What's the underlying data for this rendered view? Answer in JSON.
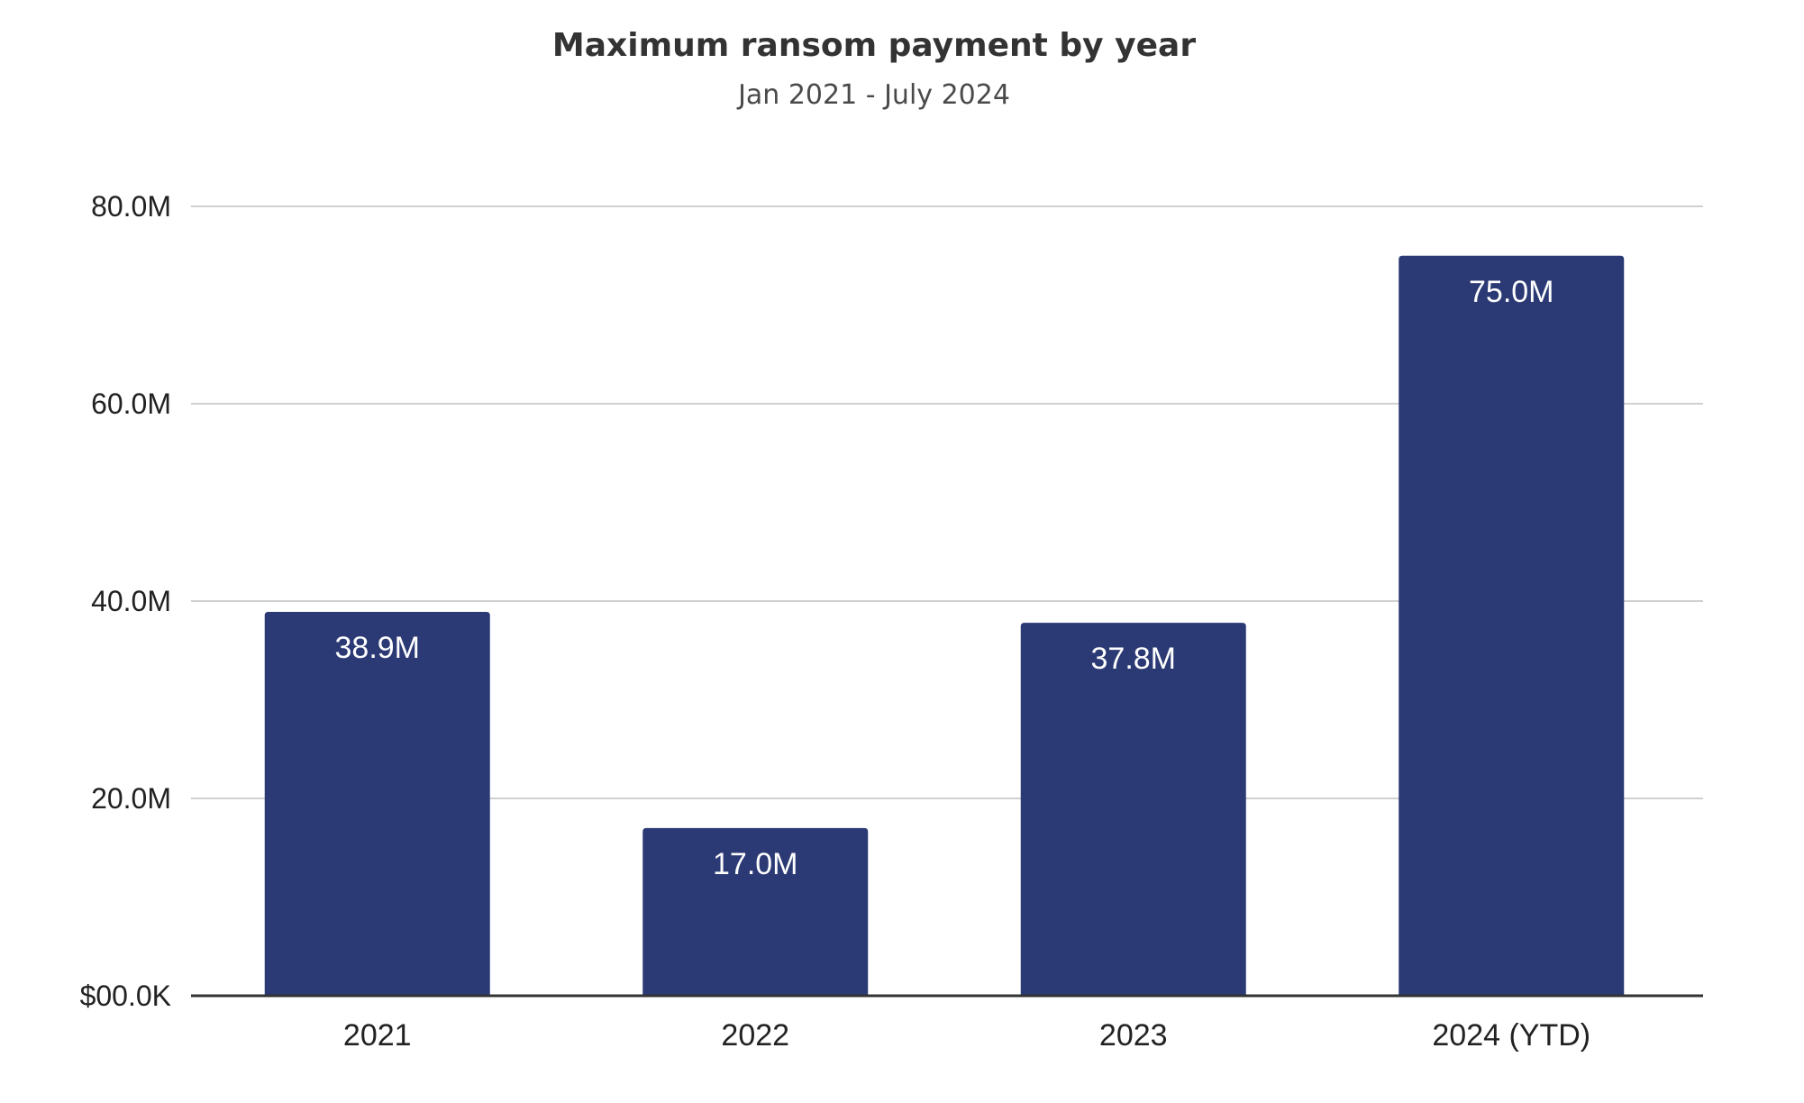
{
  "chart_data": {
    "type": "bar",
    "title": "Maximum ransom payment by year",
    "subtitle": "Jan 2021 - July 2024",
    "categories": [
      "2021",
      "2022",
      "2023",
      "2024 (YTD)"
    ],
    "values": [
      38.9,
      17.0,
      37.8,
      75.0
    ],
    "value_labels": [
      "38.9M",
      "17.0M",
      "37.8M",
      "75.0M"
    ],
    "xlabel": "",
    "ylabel": "",
    "ylim": [
      0,
      80
    ],
    "yticks": [
      0,
      20,
      40,
      60,
      80
    ],
    "ytick_labels": [
      "$00.0K",
      "20.0M",
      "40.0M",
      "60.0M",
      "80.0M"
    ],
    "grid": true,
    "legend": "none",
    "colors": {
      "bar": "#2b3a74",
      "grid": "#d0d0d0",
      "axis": "#333333"
    }
  }
}
